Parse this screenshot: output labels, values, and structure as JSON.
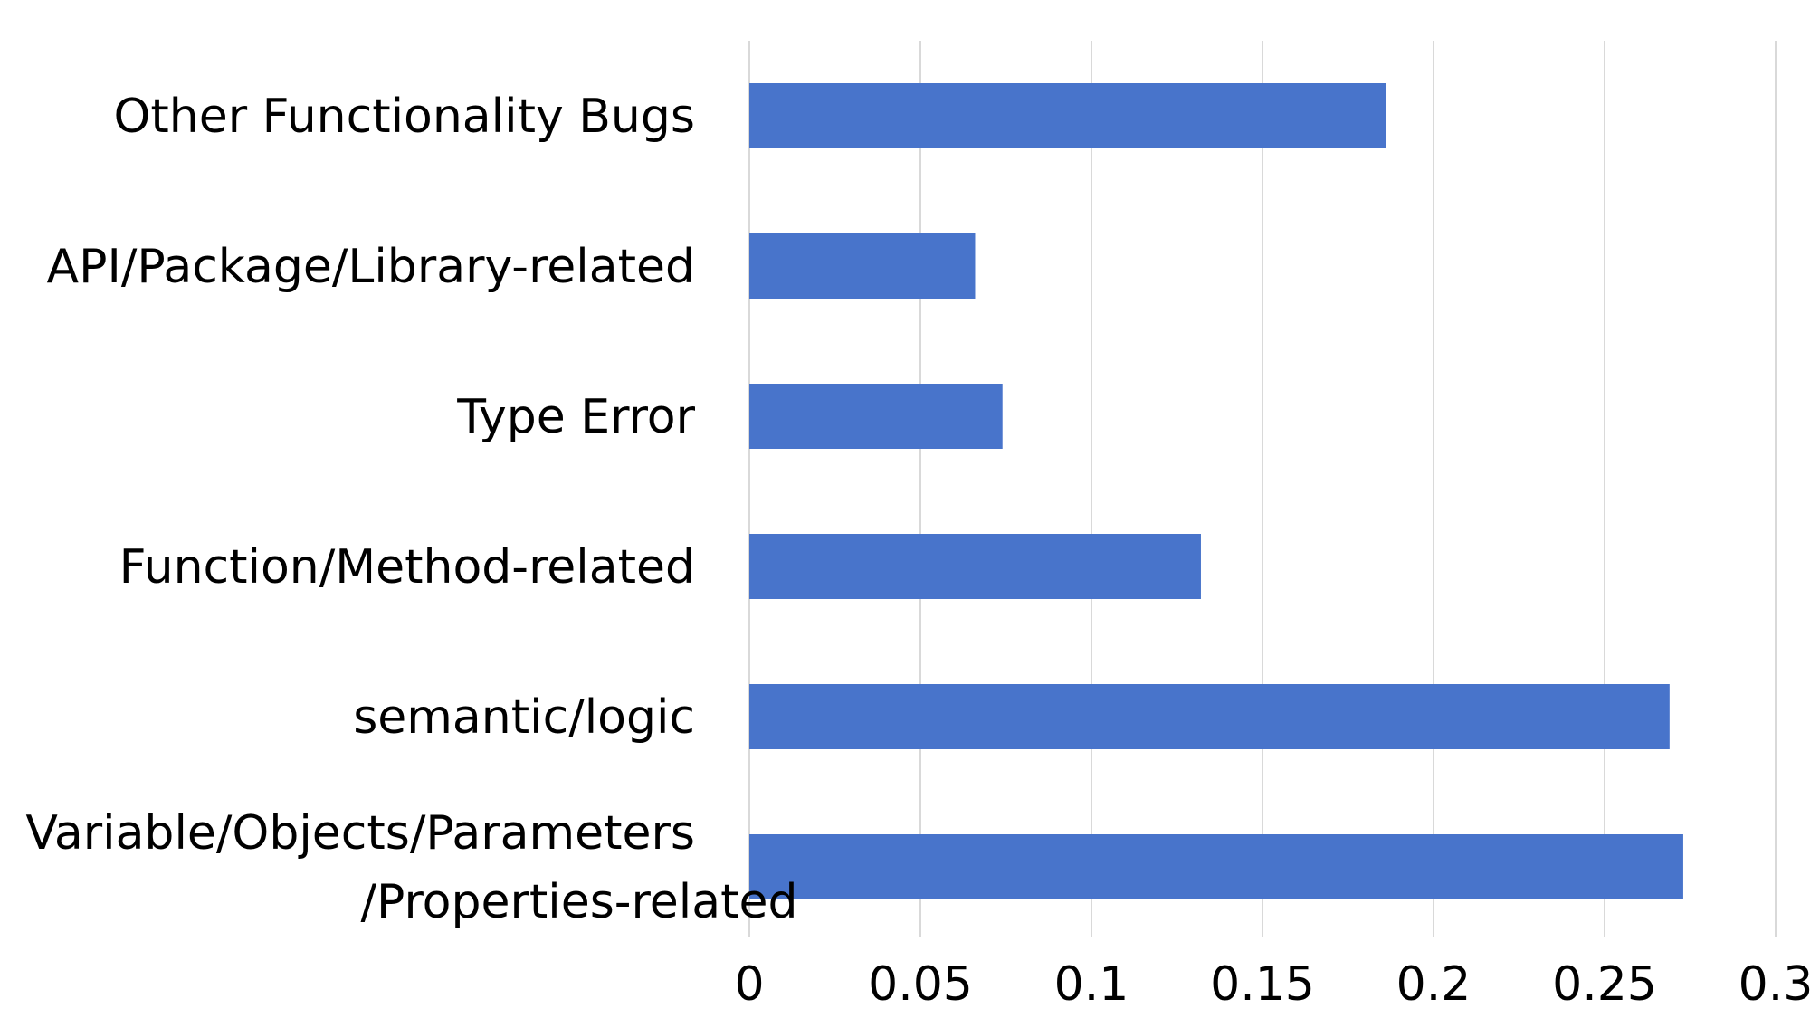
{
  "chart_data": {
    "type": "bar",
    "orientation": "horizontal",
    "title": "",
    "xlabel": "",
    "ylabel": "",
    "xlim": [
      0,
      0.3
    ],
    "x_ticks": [
      "0",
      "0.05",
      "0.1",
      "0.15",
      "0.2",
      "0.25",
      "0.3"
    ],
    "x_tick_values": [
      0,
      0.05,
      0.1,
      0.15,
      0.2,
      0.25,
      0.3
    ],
    "grid": "vertical",
    "legend": "none",
    "bar_color": "#4874CB",
    "categories": [
      [
        "Other Functionality Bugs"
      ],
      [
        "API/Package/Library-related"
      ],
      [
        "Type Error"
      ],
      [
        "Function/Method-related"
      ],
      [
        "semantic/logic"
      ],
      [
        "Variable/Objects/Parameters",
        "/Properties-related"
      ]
    ],
    "values": [
      0.186,
      0.066,
      0.074,
      0.132,
      0.269,
      0.273
    ]
  }
}
